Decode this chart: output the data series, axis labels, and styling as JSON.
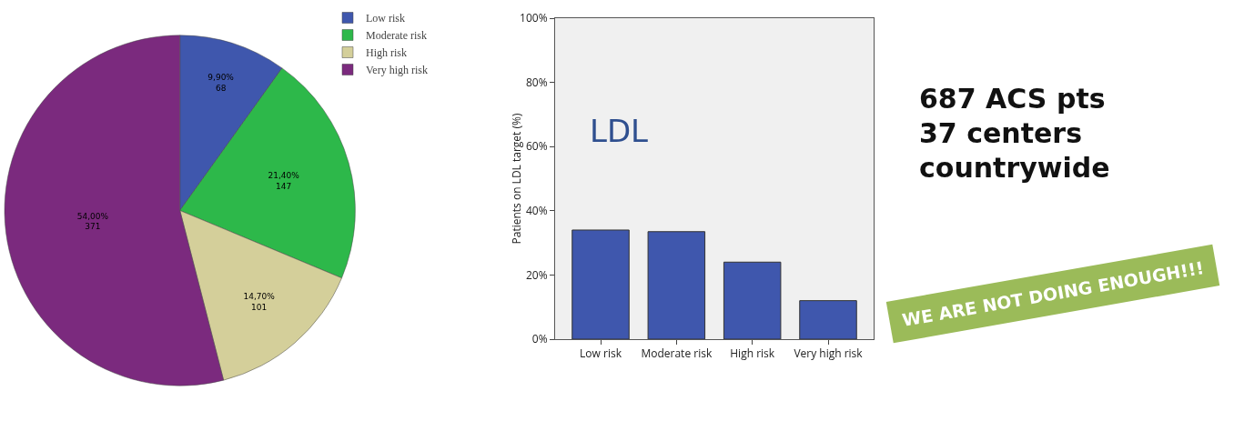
{
  "chart_data": [
    {
      "type": "pie",
      "categories": [
        "Low risk",
        "Moderate risk",
        "High risk",
        "Very high risk"
      ],
      "values": [
        68,
        147,
        101,
        371
      ],
      "colors": [
        "#3f57ad",
        "#2db84a",
        "#d4cf9a",
        "#7b2a7e"
      ],
      "value_labels": [
        "9,90%\n68",
        "21,40%\n147",
        "14,70%\n101",
        "54,00%\n371"
      ],
      "legend": "top right"
    },
    {
      "type": "bar",
      "categories": [
        "Low risk",
        "Moderate risk",
        "High risk",
        "Very high risk"
      ],
      "values": [
        34,
        33.5,
        24,
        12
      ],
      "color": "#3f57ad",
      "ylim": [
        0,
        100
      ],
      "yticks": [
        {
          "value": 0,
          "label": "0%"
        },
        {
          "value": 20,
          "label": "20%"
        },
        {
          "value": 40,
          "label": "40%"
        },
        {
          "value": 60,
          "label": "60%"
        },
        {
          "value": 80,
          "label": "80%"
        },
        {
          "value": 100,
          "label": "100%"
        }
      ],
      "ylabel": "Patients on LDL target (%)",
      "annotations": [
        "LDL"
      ]
    },
    {
      "type": "other",
      "annotations": [
        "687 ACS pts",
        "37 centers",
        "countrywide"
      ]
    },
    {
      "type": "other",
      "title": "WE ARE NOT DOING ENOUGH!!!"
    }
  ]
}
